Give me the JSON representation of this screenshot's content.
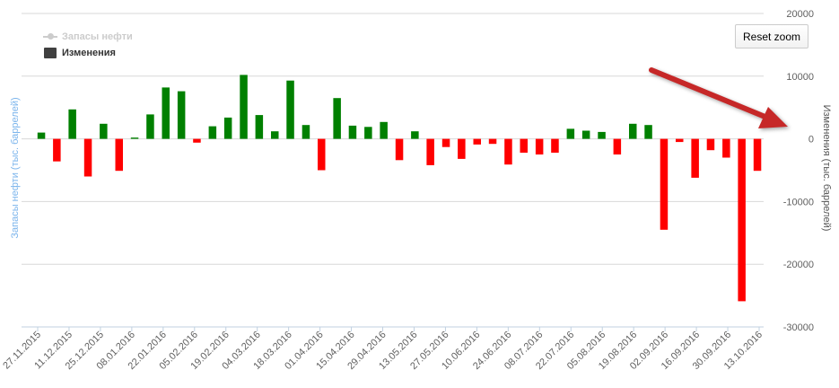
{
  "legend": {
    "items": [
      {
        "label": "Запасы нефти",
        "state": "hidden"
      },
      {
        "label": "Изменения",
        "state": "visible"
      }
    ]
  },
  "reset_zoom_label": "Reset zoom",
  "annotation": {
    "type": "red-arrow"
  },
  "colors": {
    "positive": "#008000",
    "negative": "#ff0000",
    "grid": "#d8d8d8",
    "axis_label_left": "#7cb5ec",
    "axis_label_right": "#555555"
  },
  "chart_data": {
    "type": "bar",
    "title": "",
    "xlabel": "",
    "ylabel_left": "Запасы нефти (тыс. баррелей)",
    "ylabel_right": "Изменения (тыс. баррелей)",
    "ylim": [
      -30000,
      20000
    ],
    "yticks": [
      20000,
      10000,
      0,
      -10000,
      -20000,
      -30000
    ],
    "ytick_labels": [
      "20000",
      "10000",
      "0",
      "-10000",
      "-20000",
      "-30000"
    ],
    "xtick_labels": [
      "27.11.2015",
      "11.12.2015",
      "25.12.2015",
      "08.01.2016",
      "22.01.2016",
      "05.02.2016",
      "19.02.2016",
      "04.03.2016",
      "18.03.2016",
      "01.04.2016",
      "15.04.2016",
      "29.04.2016",
      "13.05.2016",
      "27.05.2016",
      "10.06.2016",
      "24.06.2016",
      "08.07.2016",
      "22.07.2016",
      "05.08.2016",
      "19.08.2016",
      "02.09.2016",
      "16.09.2016",
      "30.09.2016",
      "13.10.2016"
    ],
    "grid": true,
    "legend_position": "top-left",
    "series": [
      {
        "name": "Изменения",
        "values": [
          1000,
          -3600,
          4700,
          -6000,
          2400,
          -5100,
          200,
          3900,
          8200,
          7600,
          -600,
          2000,
          3400,
          10200,
          3800,
          1200,
          9300,
          2200,
          -5000,
          6500,
          2100,
          1900,
          2700,
          -3400,
          1200,
          -4200,
          -1300,
          -3200,
          -900,
          -800,
          -4100,
          -2200,
          -2500,
          -2200,
          1600,
          1300,
          1100,
          -2500,
          2400,
          2200,
          -14500,
          -500,
          -6200,
          -1800,
          -3000,
          -25900,
          -5100
        ]
      }
    ]
  }
}
